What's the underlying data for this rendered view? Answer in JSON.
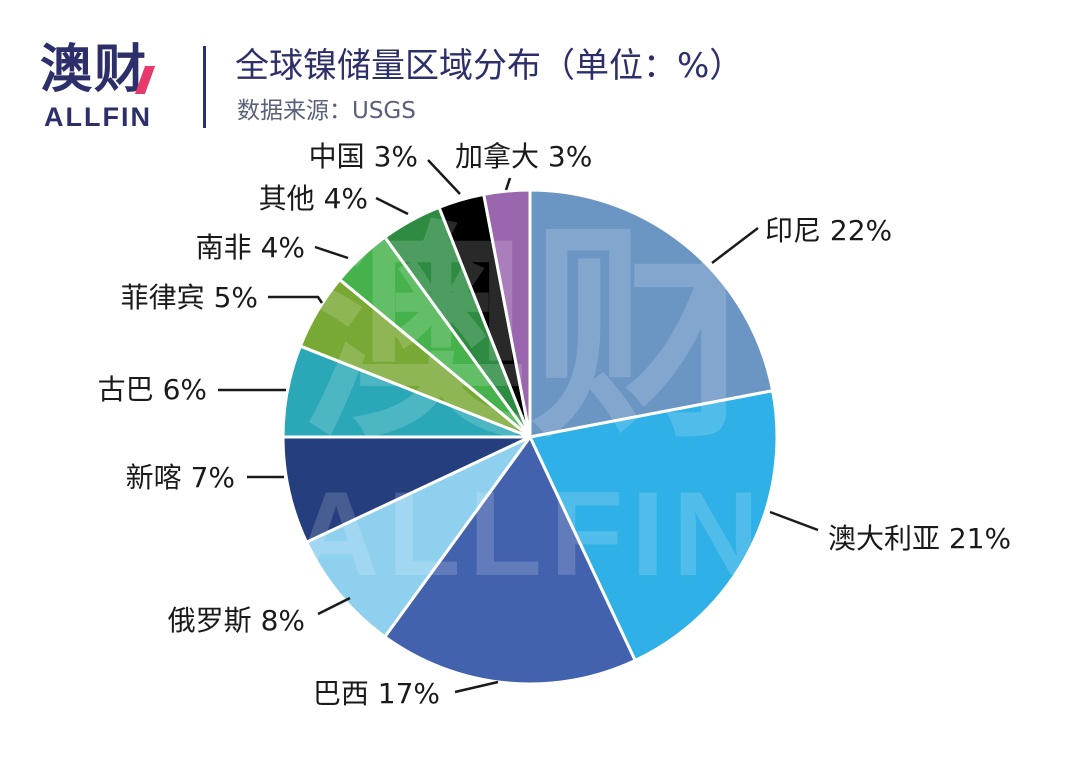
{
  "logo": {
    "cn": "澳财",
    "en": "ALLFIN"
  },
  "watermark": {
    "cn": "澳财",
    "en": "ALLFIN"
  },
  "chart_data": {
    "type": "pie",
    "title": "全球镍储量区域分布（单位：%）",
    "subtitle": "数据来源：USGS",
    "unit": "%",
    "legend": "none",
    "slices": [
      {
        "label": "印尼",
        "value": 22,
        "display": "印尼 22%",
        "color": "#6b96c4"
      },
      {
        "label": "澳大利亚",
        "value": 21,
        "display": "澳大利亚 21%",
        "color": "#2fb0e6"
      },
      {
        "label": "巴西",
        "value": 17,
        "display": "巴西 17%",
        "color": "#4362ae"
      },
      {
        "label": "俄罗斯",
        "value": 8,
        "display": "俄罗斯 8%",
        "color": "#8fd0ee"
      },
      {
        "label": "新喀",
        "value": 7,
        "display": "新喀 7%",
        "color": "#253f7e"
      },
      {
        "label": "古巴",
        "value": 6,
        "display": "古巴 6%",
        "color": "#2aa8b8"
      },
      {
        "label": "菲律宾",
        "value": 5,
        "display": "菲律宾 5%",
        "color": "#79a935"
      },
      {
        "label": "南非",
        "value": 4,
        "display": "南非 4%",
        "color": "#45b24b"
      },
      {
        "label": "其他",
        "value": 4,
        "display": "其他 4%",
        "color": "#2d8b42"
      },
      {
        "label": "中国",
        "value": 3,
        "display": "中国 3%",
        "color": "#000000"
      },
      {
        "label": "加拿大",
        "value": 3,
        "display": "加拿大 3%",
        "color": "#9a66ad"
      }
    ]
  }
}
